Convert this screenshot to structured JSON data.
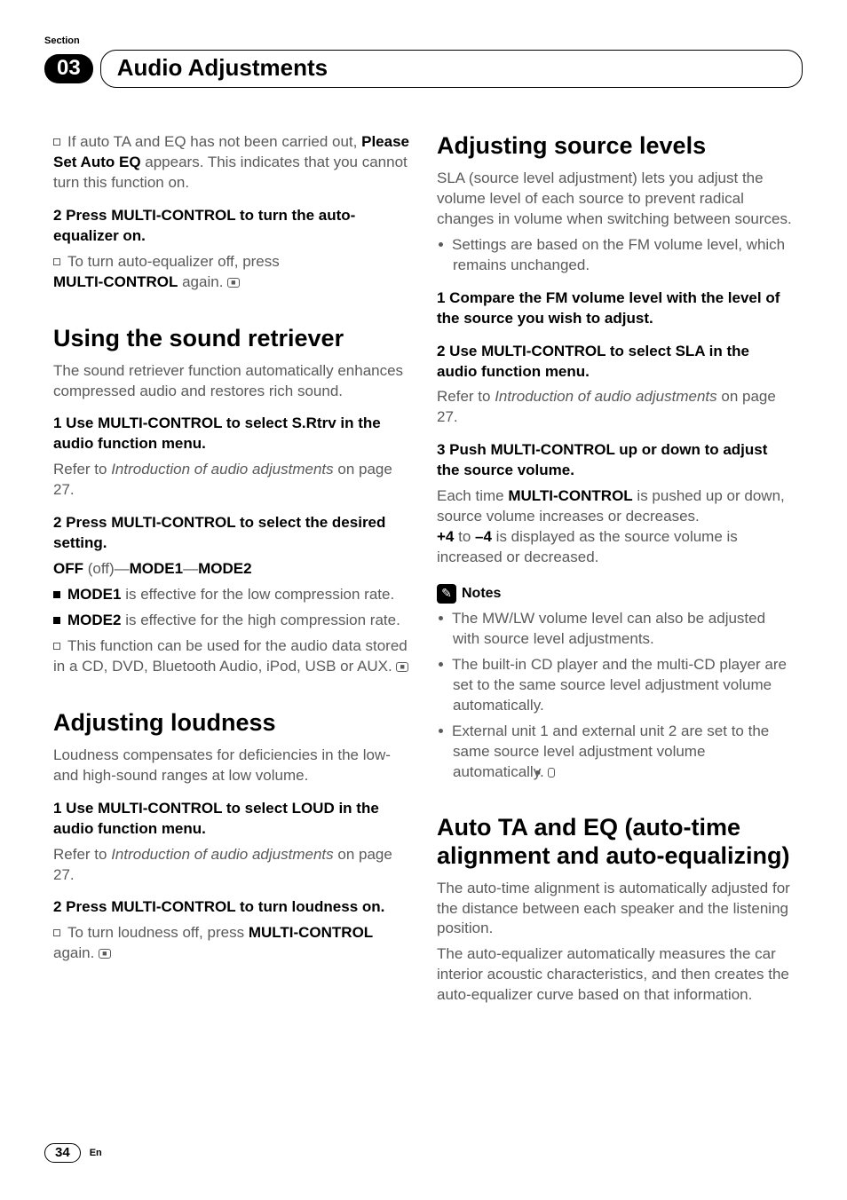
{
  "header": {
    "section_label": "Section",
    "section_number": "03",
    "title": "Audio Adjustments"
  },
  "left": {
    "top_note1_pre": "If auto TA and EQ has not been carried out,",
    "top_note1_bold": "Please Set Auto EQ",
    "top_note1_post": " appears. This indicates that you cannot turn this function on.",
    "step2": "2    Press MULTI-CONTROL to turn the auto-equalizer on.",
    "top_note2_pre": "To turn auto-equalizer off, press ",
    "top_note2_bold": "MULTI-CONTROL",
    "top_note2_post": " again.",
    "retriever_h": "Using the sound retriever",
    "retriever_intro": "The sound retriever function automatically enhances compressed audio and restores rich sound.",
    "retriever_s1": "1    Use MULTI-CONTROL to select S.Rtrv in the audio function menu.",
    "retriever_s1_ref_pre": "Refer to ",
    "retriever_s1_ref_it": "Introduction of audio adjustments",
    "retriever_s1_ref_post": " on page 27.",
    "retriever_s2": "2    Press MULTI-CONTROL to select the desired setting.",
    "retriever_modes_off": "OFF",
    "retriever_modes_off_p": " (off)—",
    "retriever_modes_m1": "MODE1",
    "retriever_modes_dash": "—",
    "retriever_modes_m2": "MODE2",
    "retriever_m1_b": "MODE1",
    "retriever_m1_t": " is effective for the low compression rate.",
    "retriever_m2_b": "MODE2",
    "retriever_m2_t": " is effective for the high compression rate.",
    "retriever_foot": "This function can be used for the audio data stored in a CD, DVD, Bluetooth Audio, iPod, USB or AUX.",
    "loudness_h": "Adjusting loudness",
    "loudness_intro": "Loudness compensates for deficiencies in the low- and high-sound ranges at low volume.",
    "loudness_s1": "1    Use MULTI-CONTROL to select LOUD in the audio function menu.",
    "loudness_s1_ref_pre": "Refer to ",
    "loudness_s1_ref_it": "Introduction of audio adjustments",
    "loudness_s1_ref_post": " on page 27.",
    "loudness_s2": "2    Press MULTI-CONTROL to turn loudness on.",
    "loudness_foot_pre": "To turn loudness off, press ",
    "loudness_foot_b": "MULTI-CONTROL",
    "loudness_foot_post": " again."
  },
  "right": {
    "sla_h": "Adjusting source levels",
    "sla_intro": "SLA (source level adjustment) lets you adjust the volume level of each source to prevent radical changes in volume when switching between sources.",
    "sla_bullet": "Settings are based on the FM volume level, which remains unchanged.",
    "sla_s1": "1    Compare the FM volume level with the level of the source you wish to adjust.",
    "sla_s2": "2    Use MULTI-CONTROL to select SLA in the audio function menu.",
    "sla_s2_ref_pre": "Refer to ",
    "sla_s2_ref_it": "Introduction of audio adjustments",
    "sla_s2_ref_post": " on page 27.",
    "sla_s3": "3    Push MULTI-CONTROL up or down to adjust the source volume.",
    "sla_s3_txt_pre": "Each time ",
    "sla_s3_txt_b1": "MULTI-CONTROL",
    "sla_s3_txt_mid": " is pushed up or down, source volume increases or decreases.",
    "sla_s3_txt_b2": "+4",
    "sla_s3_txt_to": " to ",
    "sla_s3_txt_b3": "–4",
    "sla_s3_txt_post": " is displayed as the source volume is increased or decreased.",
    "notes_label": "Notes",
    "note1": "The MW/LW volume level can also be adjusted with source level adjustments.",
    "note2": "The built-in CD player and the multi-CD player are set to the same source level adjustment volume automatically.",
    "note3": "External unit 1 and external unit 2 are set to the same source level adjustment volume automatically.",
    "auto_h": "Auto TA and EQ (auto-time alignment and auto-equalizing)",
    "auto_p1": "The auto-time alignment is automatically adjusted for the distance between each speaker and the listening position.",
    "auto_p2": "The auto-equalizer automatically measures the car interior acoustic characteristics, and then creates the auto-equalizer curve based on that information."
  },
  "footer": {
    "page": "34",
    "lang": "En"
  }
}
